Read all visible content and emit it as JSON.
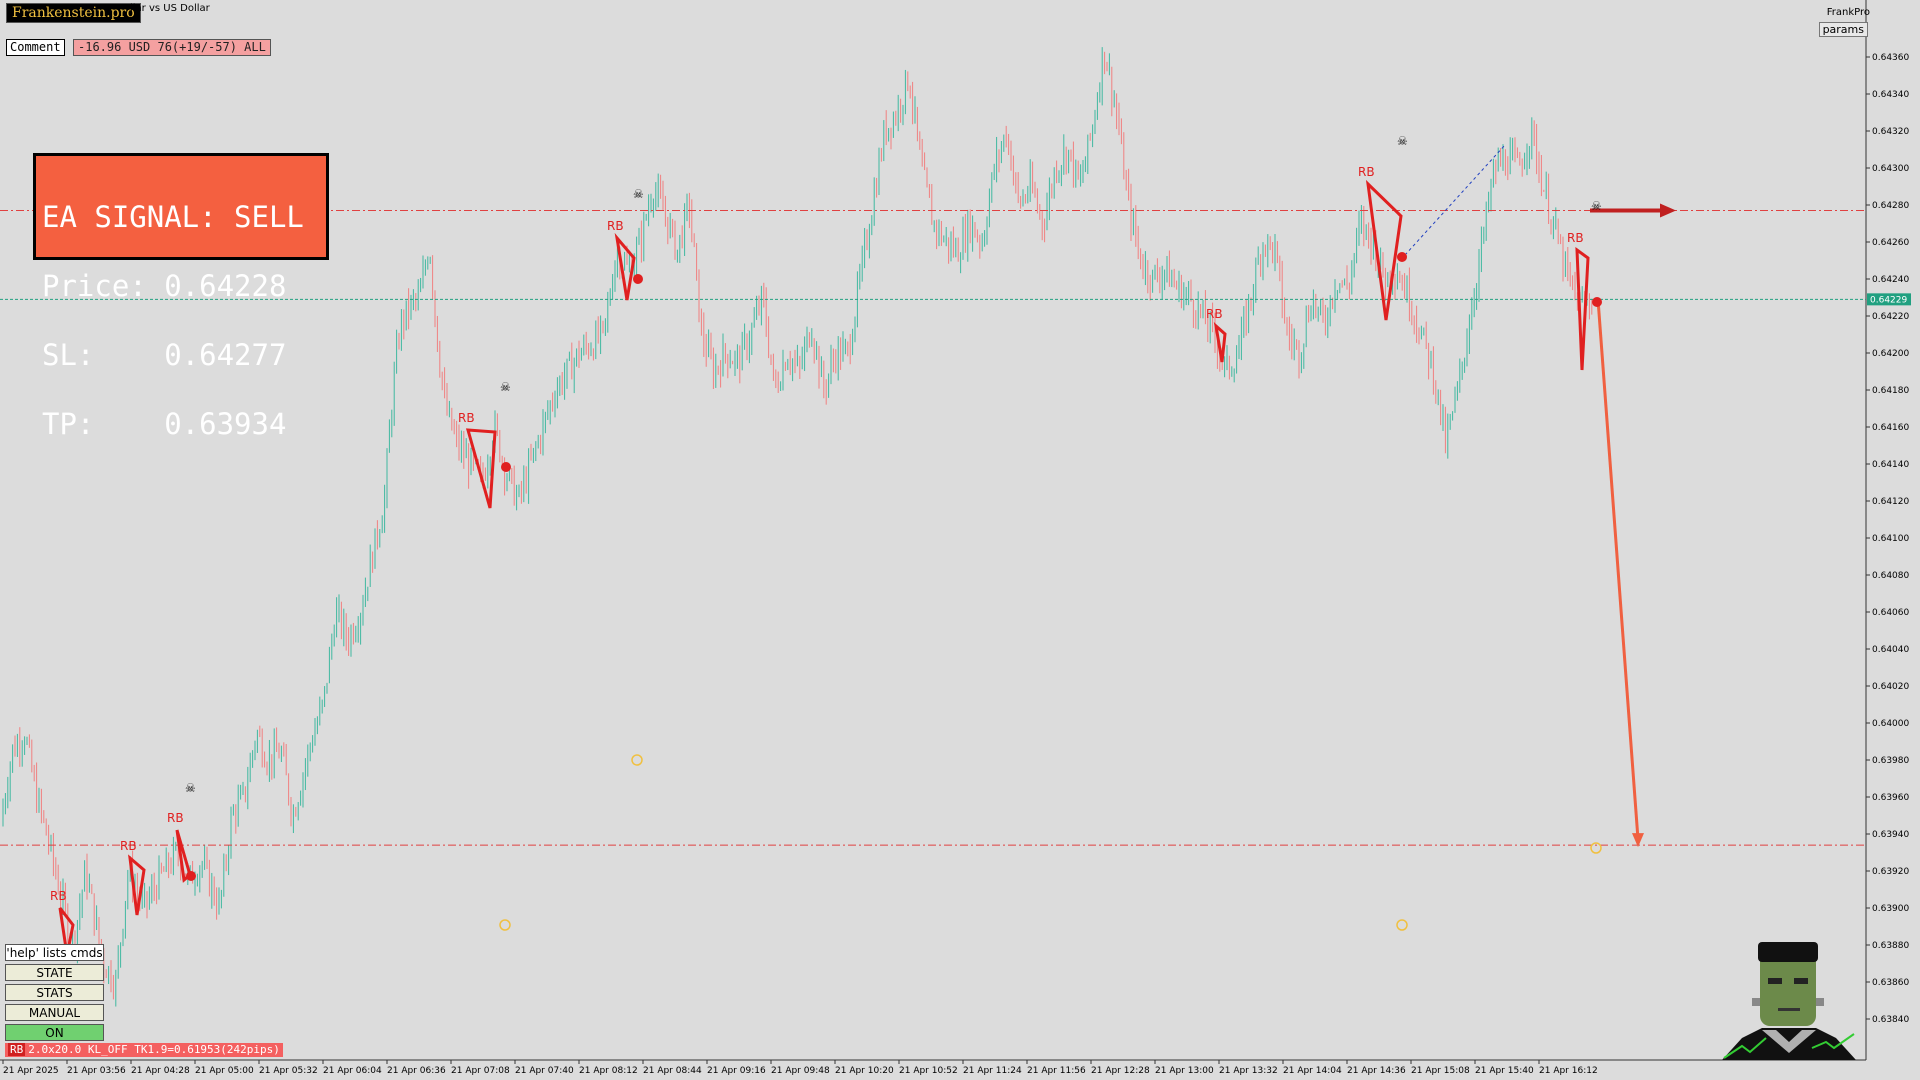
{
  "header": {
    "brand": "Frankenstein.pro",
    "symbol_title": "llar vs US Dollar",
    "comment_button": "Comment",
    "comment_value": "-16.96 USD 76(+19/-57) ALL",
    "expert_name": "FrankPro",
    "params_button": "params"
  },
  "signal_box": {
    "line1": "EA SIGNAL: SELL",
    "line2": "Price: 0.64228",
    "line3": "SL:    0.64277",
    "line4": "TP:    0.63934"
  },
  "price_axis": {
    "ticks": [
      "0.64360",
      "0.64340",
      "0.64320",
      "0.64300",
      "0.64280",
      "0.64260",
      "0.64240",
      "0.64220",
      "0.64200",
      "0.64180",
      "0.64160",
      "0.64140",
      "0.64120",
      "0.64100",
      "0.64080",
      "0.64060",
      "0.64040",
      "0.64020",
      "0.64000",
      "0.63980",
      "0.63960",
      "0.63940",
      "0.63920",
      "0.63900",
      "0.63880",
      "0.63860",
      "0.63840"
    ],
    "current_price": "0.64229",
    "current_color": "#20a080"
  },
  "time_axis": {
    "labels": [
      "21 Apr 2025",
      "21 Apr 03:56",
      "21 Apr 04:28",
      "21 Apr 05:00",
      "21 Apr 05:32",
      "21 Apr 06:04",
      "21 Apr 06:36",
      "21 Apr 07:08",
      "21 Apr 07:40",
      "21 Apr 08:12",
      "21 Apr 08:44",
      "21 Apr 09:16",
      "21 Apr 09:48",
      "21 Apr 10:20",
      "21 Apr 10:52",
      "21 Apr 11:24",
      "21 Apr 11:56",
      "21 Apr 12:28",
      "21 Apr 13:00",
      "21 Apr 13:32",
      "21 Apr 14:04",
      "21 Apr 14:36",
      "21 Apr 15:08",
      "21 Apr 15:40",
      "21 Apr 16:12"
    ]
  },
  "controls": {
    "help": "'help' lists cmds",
    "state": "STATE",
    "stats": "STATS",
    "manual": "MANUAL",
    "on": "ON"
  },
  "rb_status": {
    "tag": "RB",
    "text": "2.0x20.0 KL_OFF TK1.9=0.61953(242pips)"
  },
  "levels": {
    "sl": 0.64277,
    "entry": 0.64229,
    "tp": 0.63934
  },
  "pattern_label": "RB",
  "colors": {
    "bull": "#40b8a0",
    "bear": "#f08080",
    "signal": "#f46040",
    "rb": "#e02020"
  },
  "chart_data": {
    "type": "candlestick",
    "title": "",
    "ylim": [
      0.6382,
      0.6438
    ],
    "close_path": [
      [
        0,
        0.63945
      ],
      [
        10,
        0.63985
      ],
      [
        20,
        0.63995
      ],
      [
        30,
        0.6396
      ],
      [
        40,
        0.63935
      ],
      [
        52,
        0.639
      ],
      [
        60,
        0.6388
      ],
      [
        70,
        0.6392
      ],
      [
        85,
        0.6387
      ],
      [
        95,
        0.6386
      ],
      [
        105,
        0.6392
      ],
      [
        118,
        0.639
      ],
      [
        130,
        0.63915
      ],
      [
        145,
        0.6393
      ],
      [
        155,
        0.63915
      ],
      [
        165,
        0.63925
      ],
      [
        180,
        0.639
      ],
      [
        190,
        0.6395
      ],
      [
        200,
        0.6396
      ],
      [
        210,
        0.63995
      ],
      [
        220,
        0.6398
      ],
      [
        230,
        0.63985
      ],
      [
        240,
        0.6395
      ],
      [
        255,
        0.6399
      ],
      [
        265,
        0.6401
      ],
      [
        275,
        0.6406
      ],
      [
        285,
        0.64045
      ],
      [
        295,
        0.6406
      ],
      [
        305,
        0.6409
      ],
      [
        315,
        0.6412
      ],
      [
        322,
        0.6418
      ],
      [
        328,
        0.64215
      ],
      [
        336,
        0.64225
      ],
      [
        344,
        0.6423
      ],
      [
        352,
        0.6426
      ],
      [
        358,
        0.6421
      ],
      [
        365,
        0.6417
      ],
      [
        375,
        0.6415
      ],
      [
        385,
        0.6414
      ],
      [
        395,
        0.6413
      ],
      [
        405,
        0.6416
      ],
      [
        415,
        0.64135
      ],
      [
        425,
        0.6412
      ],
      [
        435,
        0.6414
      ],
      [
        445,
        0.6416
      ],
      [
        455,
        0.6418
      ],
      [
        465,
        0.6419
      ],
      [
        475,
        0.642
      ],
      [
        485,
        0.64205
      ],
      [
        495,
        0.6421
      ],
      [
        505,
        0.64255
      ],
      [
        515,
        0.64245
      ],
      [
        525,
        0.6426
      ],
      [
        535,
        0.6429
      ],
      [
        545,
        0.64275
      ],
      [
        555,
        0.64255
      ],
      [
        565,
        0.6428
      ],
      [
        575,
        0.6421
      ],
      [
        585,
        0.6419
      ],
      [
        595,
        0.642
      ],
      [
        605,
        0.64195
      ],
      [
        615,
        0.6421
      ],
      [
        625,
        0.6423
      ],
      [
        635,
        0.6418
      ],
      [
        645,
        0.642
      ],
      [
        655,
        0.6419
      ],
      [
        665,
        0.64215
      ],
      [
        675,
        0.6418
      ],
      [
        685,
        0.642
      ],
      [
        695,
        0.642
      ],
      [
        705,
        0.6424
      ],
      [
        715,
        0.6428
      ],
      [
        725,
        0.6432
      ],
      [
        735,
        0.6433
      ],
      [
        745,
        0.6435
      ],
      [
        755,
        0.643
      ],
      [
        765,
        0.6427
      ],
      [
        775,
        0.6426
      ],
      [
        785,
        0.64255
      ],
      [
        795,
        0.6427
      ],
      [
        805,
        0.6426
      ],
      [
        815,
        0.643
      ],
      [
        825,
        0.6432
      ],
      [
        835,
        0.6428
      ],
      [
        845,
        0.6429
      ],
      [
        855,
        0.6427
      ],
      [
        865,
        0.643
      ],
      [
        875,
        0.6431
      ],
      [
        885,
        0.6429
      ],
      [
        895,
        0.6432
      ],
      [
        905,
        0.64365
      ],
      [
        915,
        0.6433
      ],
      [
        925,
        0.6428
      ],
      [
        935,
        0.6425
      ],
      [
        945,
        0.6424
      ],
      [
        955,
        0.64245
      ],
      [
        965,
        0.64235
      ],
      [
        975,
        0.6423
      ],
      [
        985,
        0.6422
      ],
      [
        995,
        0.6421
      ],
      [
        1005,
        0.6419
      ],
      [
        1015,
        0.642
      ],
      [
        1025,
        0.6423
      ],
      [
        1035,
        0.6426
      ],
      [
        1045,
        0.64255
      ],
      [
        1055,
        0.6421
      ],
      [
        1065,
        0.642
      ],
      [
        1075,
        0.6423
      ],
      [
        1085,
        0.64215
      ],
      [
        1095,
        0.6424
      ],
      [
        1105,
        0.64235
      ],
      [
        1115,
        0.6427
      ],
      [
        1125,
        0.6426
      ],
      [
        1135,
        0.6424
      ],
      [
        1145,
        0.64245
      ],
      [
        1155,
        0.6423
      ],
      [
        1165,
        0.6421
      ],
      [
        1175,
        0.6419
      ],
      [
        1185,
        0.6415
      ],
      [
        1195,
        0.6418
      ],
      [
        1205,
        0.6422
      ],
      [
        1215,
        0.6426
      ],
      [
        1225,
        0.643
      ],
      [
        1235,
        0.64305
      ],
      [
        1245,
        0.643
      ],
      [
        1255,
        0.6432
      ],
      [
        1265,
        0.6429
      ],
      [
        1275,
        0.64265
      ],
      [
        1285,
        0.6424
      ],
      [
        1295,
        0.64225
      ],
      [
        1305,
        0.64229
      ]
    ]
  }
}
